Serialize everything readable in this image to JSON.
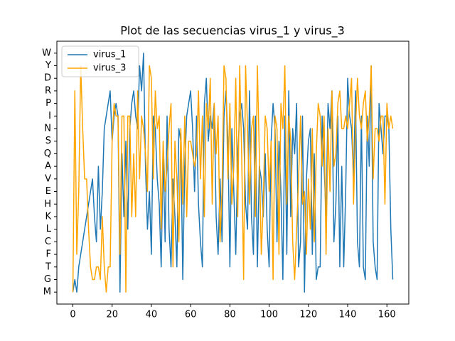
{
  "chart_data": {
    "type": "line",
    "title": "Plot de las secuencias virus_1 y virus_3",
    "x": [
      0,
      1,
      2,
      3,
      4,
      5,
      6,
      7,
      8,
      9,
      10,
      11,
      12,
      13,
      14,
      15,
      16,
      17,
      18,
      19,
      20,
      21,
      22,
      23,
      24,
      25,
      26,
      27,
      28,
      29,
      30,
      31,
      32,
      33,
      34,
      35,
      36,
      37,
      38,
      39,
      40,
      41,
      42,
      43,
      44,
      45,
      46,
      47,
      48,
      49,
      50,
      51,
      52,
      53,
      54,
      55,
      56,
      57,
      58,
      59,
      60,
      61,
      62,
      63,
      64,
      65,
      66,
      67,
      68,
      69,
      70,
      71,
      72,
      73,
      74,
      75,
      76,
      77,
      78,
      79,
      80,
      81,
      82,
      83,
      84,
      85,
      86,
      87,
      88,
      89,
      90,
      91,
      92,
      93,
      94,
      95,
      96,
      97,
      98,
      99,
      100,
      101,
      102,
      103,
      104,
      105,
      106,
      107,
      108,
      109,
      110,
      111,
      112,
      113,
      114,
      115,
      116,
      117,
      118,
      119,
      120,
      121,
      122,
      123,
      124,
      125,
      126,
      127,
      128,
      129,
      130,
      131,
      132,
      133,
      134,
      135,
      136,
      137,
      138,
      139,
      140,
      141,
      142,
      143,
      144,
      145,
      146,
      147,
      148,
      149,
      150,
      151,
      152,
      153,
      154,
      155,
      156,
      157,
      158,
      159,
      160,
      161,
      162,
      163
    ],
    "series": [
      {
        "name": "virus_1",
        "color": "#1f77b4",
        "values": [
          0,
          1,
          0,
          2,
          3,
          4,
          5,
          6,
          7,
          8,
          9,
          6,
          4,
          10,
          5,
          8,
          13,
          14,
          15,
          16,
          12,
          14,
          15,
          14,
          0,
          11,
          6,
          12,
          5,
          13,
          15,
          16,
          14,
          13,
          18,
          16,
          19,
          10,
          5,
          8,
          3,
          14,
          13,
          9,
          7,
          2,
          11,
          4,
          14,
          5,
          2,
          9,
          6,
          2,
          13,
          12,
          1,
          10,
          14,
          15,
          16,
          13,
          8,
          14,
          7,
          4,
          2,
          15,
          17,
          12,
          14,
          13,
          15,
          6,
          3,
          9,
          4,
          14,
          16,
          12,
          2,
          13,
          8,
          3,
          11,
          14,
          15,
          13,
          7,
          5,
          16,
          6,
          3,
          14,
          2,
          10,
          9,
          6,
          11,
          5,
          2,
          12,
          15,
          13,
          4,
          12,
          8,
          1,
          14,
          3,
          16,
          6,
          13,
          11,
          15,
          2,
          4,
          14,
          0,
          9,
          12,
          13,
          3,
          11,
          1,
          2,
          2,
          14,
          10,
          6,
          15,
          13,
          16,
          4,
          7,
          14,
          2,
          10,
          2,
          8,
          17,
          14,
          13,
          9,
          16,
          4,
          2,
          14,
          2,
          1,
          14,
          10,
          18,
          4,
          2,
          1,
          15,
          13,
          11,
          14,
          14,
          13,
          5,
          1
        ]
      },
      {
        "name": "virus_3",
        "color": "#ffa500",
        "values": [
          0,
          16,
          3,
          8,
          18,
          13,
          9,
          9,
          5,
          2,
          1,
          1,
          2,
          2,
          1,
          6,
          2,
          0,
          2,
          2,
          12,
          15,
          14,
          14,
          3,
          14,
          14,
          0,
          14,
          14,
          6,
          11,
          6,
          16,
          9,
          14,
          13,
          11,
          8,
          18,
          17,
          9,
          16,
          13,
          14,
          5,
          12,
          8,
          10,
          13,
          15,
          2,
          12,
          9,
          4,
          13,
          7,
          14,
          6,
          12,
          12,
          11,
          10,
          11,
          16,
          9,
          14,
          6,
          15,
          13,
          17,
          7,
          15,
          11,
          14,
          4,
          8,
          18,
          17,
          9,
          15,
          7,
          10,
          17,
          6,
          18,
          11,
          1,
          18,
          13,
          7,
          13,
          14,
          6,
          18,
          11,
          3,
          7,
          14,
          13,
          8,
          12,
          1,
          14,
          13,
          3,
          15,
          13,
          18,
          7,
          14,
          12,
          4,
          1,
          5,
          9,
          14,
          7,
          8,
          3,
          9,
          5,
          13,
          4,
          11,
          15,
          14,
          10,
          14,
          3,
          13,
          8,
          16,
          10,
          11,
          15,
          16,
          13,
          13,
          14,
          13,
          15,
          17,
          7,
          13,
          17,
          14,
          13,
          15,
          16,
          12,
          14,
          18,
          9,
          13,
          13,
          12,
          14,
          14,
          7,
          15,
          13,
          14,
          13
        ]
      }
    ],
    "xlim": [
      -8.15,
      171.15
    ],
    "xticks": [
      0,
      20,
      40,
      60,
      80,
      100,
      120,
      140,
      160
    ],
    "ylim": [
      -0.95,
      19.95
    ],
    "yticks": [
      {
        "value": 0,
        "label": "M"
      },
      {
        "value": 1,
        "label": "G"
      },
      {
        "value": 2,
        "label": "T"
      },
      {
        "value": 3,
        "label": "F"
      },
      {
        "value": 4,
        "label": "C"
      },
      {
        "value": 5,
        "label": "L"
      },
      {
        "value": 6,
        "label": "K"
      },
      {
        "value": 7,
        "label": "H"
      },
      {
        "value": 8,
        "label": "E"
      },
      {
        "value": 9,
        "label": "V"
      },
      {
        "value": 10,
        "label": "A"
      },
      {
        "value": 11,
        "label": "Q"
      },
      {
        "value": 12,
        "label": "S"
      },
      {
        "value": 13,
        "label": "N"
      },
      {
        "value": 14,
        "label": "I"
      },
      {
        "value": 15,
        "label": "P"
      },
      {
        "value": 16,
        "label": "R"
      },
      {
        "value": 17,
        "label": "D"
      },
      {
        "value": 18,
        "label": "Y"
      },
      {
        "value": 19,
        "label": "W"
      }
    ],
    "legend": "upper left",
    "grid": false
  }
}
